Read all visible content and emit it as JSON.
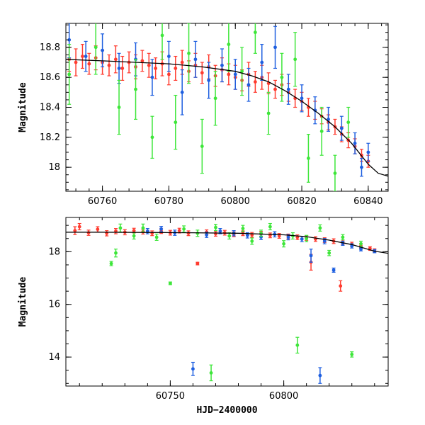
{
  "chart_data": [
    {
      "type": "scatter",
      "title": "",
      "xlabel": "",
      "ylabel": "Magnitude",
      "xlim": [
        60749,
        60846
      ],
      "ylim": [
        18.96,
        17.84
      ],
      "y_inverted": true,
      "xticks": [
        60760,
        60780,
        60800,
        60820,
        60840
      ],
      "yticks": [
        18,
        18.2,
        18.4,
        18.6,
        18.8
      ],
      "xtick_labels": [
        "60760",
        "60780",
        "60800",
        "60820",
        "60840"
      ],
      "ytick_labels": [
        "18",
        "18.2",
        "18.4",
        "18.6",
        "18.8"
      ],
      "series": [
        {
          "color": "#ff3b2f",
          "marker": "circle-errorbar",
          "points": [
            [
              60750,
              18.72,
              0.08
            ],
            [
              60752,
              18.7,
              0.09
            ],
            [
              60754,
              18.74,
              0.08
            ],
            [
              60756,
              18.69,
              0.07
            ],
            [
              60758,
              18.73,
              0.08
            ],
            [
              60760,
              18.7,
              0.08
            ],
            [
              60762,
              18.68,
              0.07
            ],
            [
              60764,
              18.72,
              0.09
            ],
            [
              60766,
              18.66,
              0.08
            ],
            [
              60768,
              18.7,
              0.07
            ],
            [
              60770,
              18.67,
              0.08
            ],
            [
              60772,
              18.71,
              0.07
            ],
            [
              60774,
              18.68,
              0.08
            ],
            [
              60776,
              18.66,
              0.07
            ],
            [
              60778,
              18.69,
              0.08
            ],
            [
              60780,
              18.62,
              0.07
            ],
            [
              60782,
              18.66,
              0.08
            ],
            [
              60784,
              18.7,
              0.08
            ],
            [
              60786,
              18.64,
              0.07
            ],
            [
              60788,
              18.68,
              0.08
            ],
            [
              60790,
              18.63,
              0.07
            ],
            [
              60792,
              18.67,
              0.08
            ],
            [
              60794,
              18.61,
              0.07
            ],
            [
              60796,
              18.65,
              0.08
            ],
            [
              60798,
              18.62,
              0.07
            ],
            [
              60800,
              18.6,
              0.08
            ],
            [
              60802,
              18.58,
              0.07
            ],
            [
              60804,
              18.62,
              0.08
            ],
            [
              60806,
              18.57,
              0.07
            ],
            [
              60808,
              18.6,
              0.08
            ],
            [
              60810,
              18.56,
              0.07
            ],
            [
              60812,
              18.52,
              0.06
            ],
            [
              60814,
              18.55,
              0.07
            ],
            [
              60816,
              18.5,
              0.06
            ],
            [
              60818,
              18.46,
              0.06
            ],
            [
              60820,
              18.44,
              0.06
            ],
            [
              60822,
              18.4,
              0.06
            ],
            [
              60824,
              18.38,
              0.06
            ],
            [
              60826,
              18.34,
              0.05
            ],
            [
              60828,
              18.3,
              0.05
            ],
            [
              60830,
              18.27,
              0.05
            ],
            [
              60832,
              18.22,
              0.05
            ],
            [
              60834,
              18.18,
              0.05
            ],
            [
              60836,
              18.14,
              0.05
            ],
            [
              60838,
              18.08,
              0.04
            ],
            [
              60840,
              18.04,
              0.04
            ]
          ]
        },
        {
          "color": "#1e5fe0",
          "marker": "circle-errorbar",
          "points": [
            [
              60750,
              18.85,
              0.12
            ],
            [
              60755,
              18.74,
              0.1
            ],
            [
              60760,
              18.78,
              0.11
            ],
            [
              60765,
              18.66,
              0.1
            ],
            [
              60770,
              18.72,
              0.11
            ],
            [
              60775,
              18.6,
              0.12
            ],
            [
              60780,
              18.74,
              0.1
            ],
            [
              60784,
              18.5,
              0.15
            ],
            [
              60788,
              18.72,
              0.12
            ],
            [
              60792,
              18.58,
              0.12
            ],
            [
              60796,
              18.68,
              0.11
            ],
            [
              60800,
              18.62,
              0.1
            ],
            [
              60804,
              18.55,
              0.11
            ],
            [
              60808,
              18.7,
              0.12
            ],
            [
              60812,
              18.8,
              0.14
            ],
            [
              60816,
              18.52,
              0.1
            ],
            [
              60820,
              18.46,
              0.09
            ],
            [
              60824,
              18.38,
              0.09
            ],
            [
              60828,
              18.32,
              0.08
            ],
            [
              60832,
              18.26,
              0.08
            ],
            [
              60836,
              18.16,
              0.07
            ],
            [
              60838,
              18.0,
              0.06
            ],
            [
              60840,
              18.1,
              0.06
            ]
          ]
        },
        {
          "color": "#3ee63a",
          "marker": "circle-errorbar",
          "points": [
            [
              60750,
              18.62,
              0.2
            ],
            [
              60758,
              18.8,
              0.18
            ],
            [
              60765,
              18.4,
              0.18
            ],
            [
              60770,
              18.52,
              0.2
            ],
            [
              60775,
              18.2,
              0.14
            ],
            [
              60778,
              18.88,
              0.16
            ],
            [
              60782,
              18.3,
              0.18
            ],
            [
              60786,
              18.76,
              0.2
            ],
            [
              60790,
              18.14,
              0.18
            ],
            [
              60794,
              18.46,
              0.18
            ],
            [
              60798,
              18.82,
              0.18
            ],
            [
              60802,
              18.64,
              0.16
            ],
            [
              60806,
              18.9,
              0.14
            ],
            [
              60810,
              18.36,
              0.14
            ],
            [
              60814,
              18.6,
              0.16
            ],
            [
              60818,
              18.72,
              0.18
            ],
            [
              60822,
              18.06,
              0.16
            ],
            [
              60826,
              18.24,
              0.16
            ],
            [
              60830,
              17.96,
              0.12
            ],
            [
              60834,
              18.3,
              0.1
            ]
          ]
        }
      ],
      "model_curve": [
        [
          60749,
          18.72
        ],
        [
          60760,
          18.71
        ],
        [
          60770,
          18.7
        ],
        [
          60780,
          18.69
        ],
        [
          60790,
          18.67
        ],
        [
          60800,
          18.64
        ],
        [
          60805,
          18.61
        ],
        [
          60810,
          18.57
        ],
        [
          60815,
          18.51
        ],
        [
          60820,
          18.44
        ],
        [
          60825,
          18.36
        ],
        [
          60830,
          18.27
        ],
        [
          60835,
          18.16
        ],
        [
          60840,
          18.02
        ],
        [
          60843,
          17.96
        ],
        [
          60846,
          17.94
        ]
      ]
    },
    {
      "type": "scatter",
      "title": "",
      "xlabel": "HJD−2400000",
      "ylabel": "Magnitude",
      "xlim": [
        60704,
        60846
      ],
      "ylim": [
        19.3,
        12.9
      ],
      "y_inverted": true,
      "xticks": [
        60750,
        60800
      ],
      "yticks": [
        14,
        16,
        18
      ],
      "xtick_labels": [
        "60750",
        "60800"
      ],
      "ytick_labels": [
        "14",
        "16",
        "18"
      ],
      "series": [
        {
          "color": "#ff3b2f",
          "marker": "circle-errorbar",
          "points": [
            [
              60708,
              18.8,
              0.15
            ],
            [
              60710,
              18.95,
              0.12
            ],
            [
              60714,
              18.72,
              0.1
            ],
            [
              60718,
              18.85,
              0.1
            ],
            [
              60722,
              18.7,
              0.1
            ],
            [
              60726,
              18.78,
              0.1
            ],
            [
              60730,
              18.74,
              0.1
            ],
            [
              60734,
              18.8,
              0.09
            ],
            [
              60738,
              18.76,
              0.09
            ],
            [
              60742,
              18.7,
              0.09
            ],
            [
              60746,
              18.78,
              0.09
            ],
            [
              60750,
              18.72,
              0.09
            ],
            [
              60754,
              18.8,
              0.09
            ],
            [
              60758,
              18.7,
              0.09
            ],
            [
              60762,
              17.55,
              0.05
            ],
            [
              60766,
              18.74,
              0.09
            ],
            [
              60770,
              18.68,
              0.09
            ],
            [
              60774,
              18.72,
              0.09
            ],
            [
              60778,
              18.66,
              0.09
            ],
            [
              60782,
              18.7,
              0.09
            ],
            [
              60786,
              18.64,
              0.09
            ],
            [
              60790,
              18.68,
              0.09
            ],
            [
              60794,
              18.62,
              0.09
            ],
            [
              60798,
              18.6,
              0.09
            ],
            [
              60802,
              18.58,
              0.09
            ],
            [
              60806,
              18.55,
              0.09
            ],
            [
              60810,
              18.52,
              0.09
            ],
            [
              60812,
              17.6,
              0.3
            ],
            [
              60814,
              18.48,
              0.09
            ],
            [
              60818,
              18.44,
              0.09
            ],
            [
              60822,
              18.4,
              0.09
            ],
            [
              60825,
              16.7,
              0.2
            ],
            [
              60826,
              18.35,
              0.09
            ],
            [
              60830,
              18.28,
              0.08
            ],
            [
              60834,
              18.22,
              0.08
            ],
            [
              60838,
              18.12,
              0.07
            ],
            [
              60840,
              18.05,
              0.06
            ]
          ]
        },
        {
          "color": "#1e5fe0",
          "marker": "circle-errorbar",
          "points": [
            [
              60740,
              18.78,
              0.1
            ],
            [
              60746,
              18.86,
              0.1
            ],
            [
              60752,
              18.72,
              0.1
            ],
            [
              60760,
              13.55,
              0.25
            ],
            [
              60766,
              18.64,
              0.1
            ],
            [
              60772,
              18.78,
              0.1
            ],
            [
              60778,
              18.7,
              0.1
            ],
            [
              60784,
              18.62,
              0.1
            ],
            [
              60790,
              18.56,
              0.1
            ],
            [
              60796,
              18.66,
              0.1
            ],
            [
              60802,
              18.55,
              0.1
            ],
            [
              60808,
              18.48,
              0.1
            ],
            [
              60812,
              17.85,
              0.25
            ],
            [
              60816,
              13.3,
              0.3
            ],
            [
              60818,
              18.4,
              0.1
            ],
            [
              60822,
              17.3,
              0.08
            ],
            [
              60826,
              18.32,
              0.08
            ],
            [
              60830,
              18.22,
              0.08
            ],
            [
              60834,
              18.1,
              0.07
            ],
            [
              60840,
              18.02,
              0.06
            ]
          ]
        },
        {
          "color": "#3ee63a",
          "marker": "circle-errorbar",
          "points": [
            [
              60724,
              17.55,
              0.08
            ],
            [
              60726,
              17.95,
              0.15
            ],
            [
              60728,
              18.9,
              0.15
            ],
            [
              60734,
              18.6,
              0.12
            ],
            [
              60738,
              18.9,
              0.15
            ],
            [
              60744,
              18.55,
              0.12
            ],
            [
              60750,
              16.8,
              0.05
            ],
            [
              60756,
              18.86,
              0.12
            ],
            [
              60762,
              18.7,
              0.12
            ],
            [
              60768,
              13.4,
              0.3
            ],
            [
              60770,
              18.92,
              0.12
            ],
            [
              60776,
              18.6,
              0.12
            ],
            [
              60782,
              18.88,
              0.12
            ],
            [
              60786,
              18.4,
              0.12
            ],
            [
              60790,
              18.7,
              0.12
            ],
            [
              60794,
              18.95,
              0.12
            ],
            [
              60800,
              18.3,
              0.12
            ],
            [
              60804,
              18.6,
              0.12
            ],
            [
              60806,
              14.45,
              0.3
            ],
            [
              60810,
              18.5,
              0.12
            ],
            [
              60816,
              18.9,
              0.12
            ],
            [
              60820,
              17.95,
              0.1
            ],
            [
              60826,
              18.55,
              0.1
            ],
            [
              60830,
              14.1,
              0.1
            ],
            [
              60834,
              18.3,
              0.1
            ]
          ]
        }
      ],
      "model_curve": [
        [
          60704,
          18.74
        ],
        [
          60720,
          18.74
        ],
        [
          60740,
          18.73
        ],
        [
          60760,
          18.72
        ],
        [
          60780,
          18.7
        ],
        [
          60800,
          18.64
        ],
        [
          60810,
          18.57
        ],
        [
          60820,
          18.44
        ],
        [
          60830,
          18.27
        ],
        [
          60840,
          18.02
        ],
        [
          60846,
          17.94
        ]
      ]
    }
  ]
}
